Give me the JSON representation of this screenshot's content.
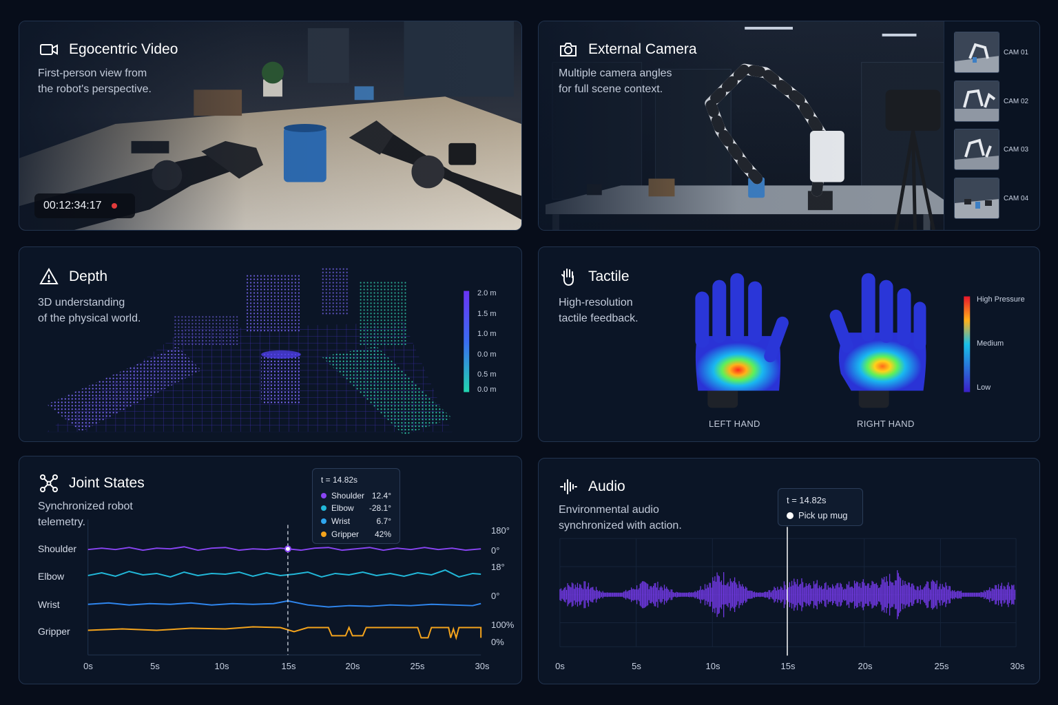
{
  "egocentric": {
    "title": "Egocentric Video",
    "description": "First-person view from\nthe robot's perspective.",
    "timecode": "00:12:34:17",
    "icon": "video-camera-icon"
  },
  "external": {
    "title": "External Camera",
    "description": "Multiple camera angles\nfor full scene context.",
    "icon": "camera-icon",
    "cameras": [
      "CAM 01",
      "CAM 02",
      "CAM 03",
      "CAM 04"
    ]
  },
  "depth": {
    "title": "Depth",
    "description": "3D understanding\nof the physical world.",
    "icon": "warning-triangle-icon",
    "scale": [
      "2.0 m",
      "1.5 m",
      "1.0 m",
      "0.0 m",
      "0.5 m",
      "0.0 m"
    ]
  },
  "tactile": {
    "title": "Tactile",
    "description": "High-resolution\ntactile feedback.",
    "icon": "hand-icon",
    "left_hand": "LEFT HAND",
    "right_hand": "RIGHT HAND",
    "legend": {
      "high": "High Pressure",
      "medium": "Medium",
      "low": "Low"
    }
  },
  "joints": {
    "title": "Joint States",
    "description": "Synchronized robot\ntelemetry.",
    "icon": "network-nodes-icon",
    "rows": [
      "Shoulder",
      "Elbow",
      "Wrist",
      "Gripper"
    ],
    "right_axis": [
      "180°",
      "0°",
      "18°",
      "0°",
      "100%",
      "0%"
    ],
    "ticks": [
      "0s",
      "5s",
      "10s",
      "15s",
      "20s",
      "25s",
      "30s"
    ],
    "tooltip": {
      "time": "t = 14.82s",
      "items": [
        {
          "name": "Shoulder",
          "value": "12.4°",
          "color": "#8a45f5"
        },
        {
          "name": "Elbow",
          "value": "-28.1°",
          "color": "#22b8d9"
        },
        {
          "name": "Wrist",
          "value": "6.7°",
          "color": "#2fa6ee"
        },
        {
          "name": "Gripper",
          "value": "42%",
          "color": "#f5a41c"
        }
      ]
    }
  },
  "audio": {
    "title": "Audio",
    "description": "Environmental audio\nsynchronized with action.",
    "icon": "waveform-icon",
    "ticks": [
      "0s",
      "5s",
      "10s",
      "15s",
      "20s",
      "25s",
      "30s"
    ],
    "tooltip": {
      "time": "t = 14.82s",
      "event": "Pick up mug"
    }
  }
}
